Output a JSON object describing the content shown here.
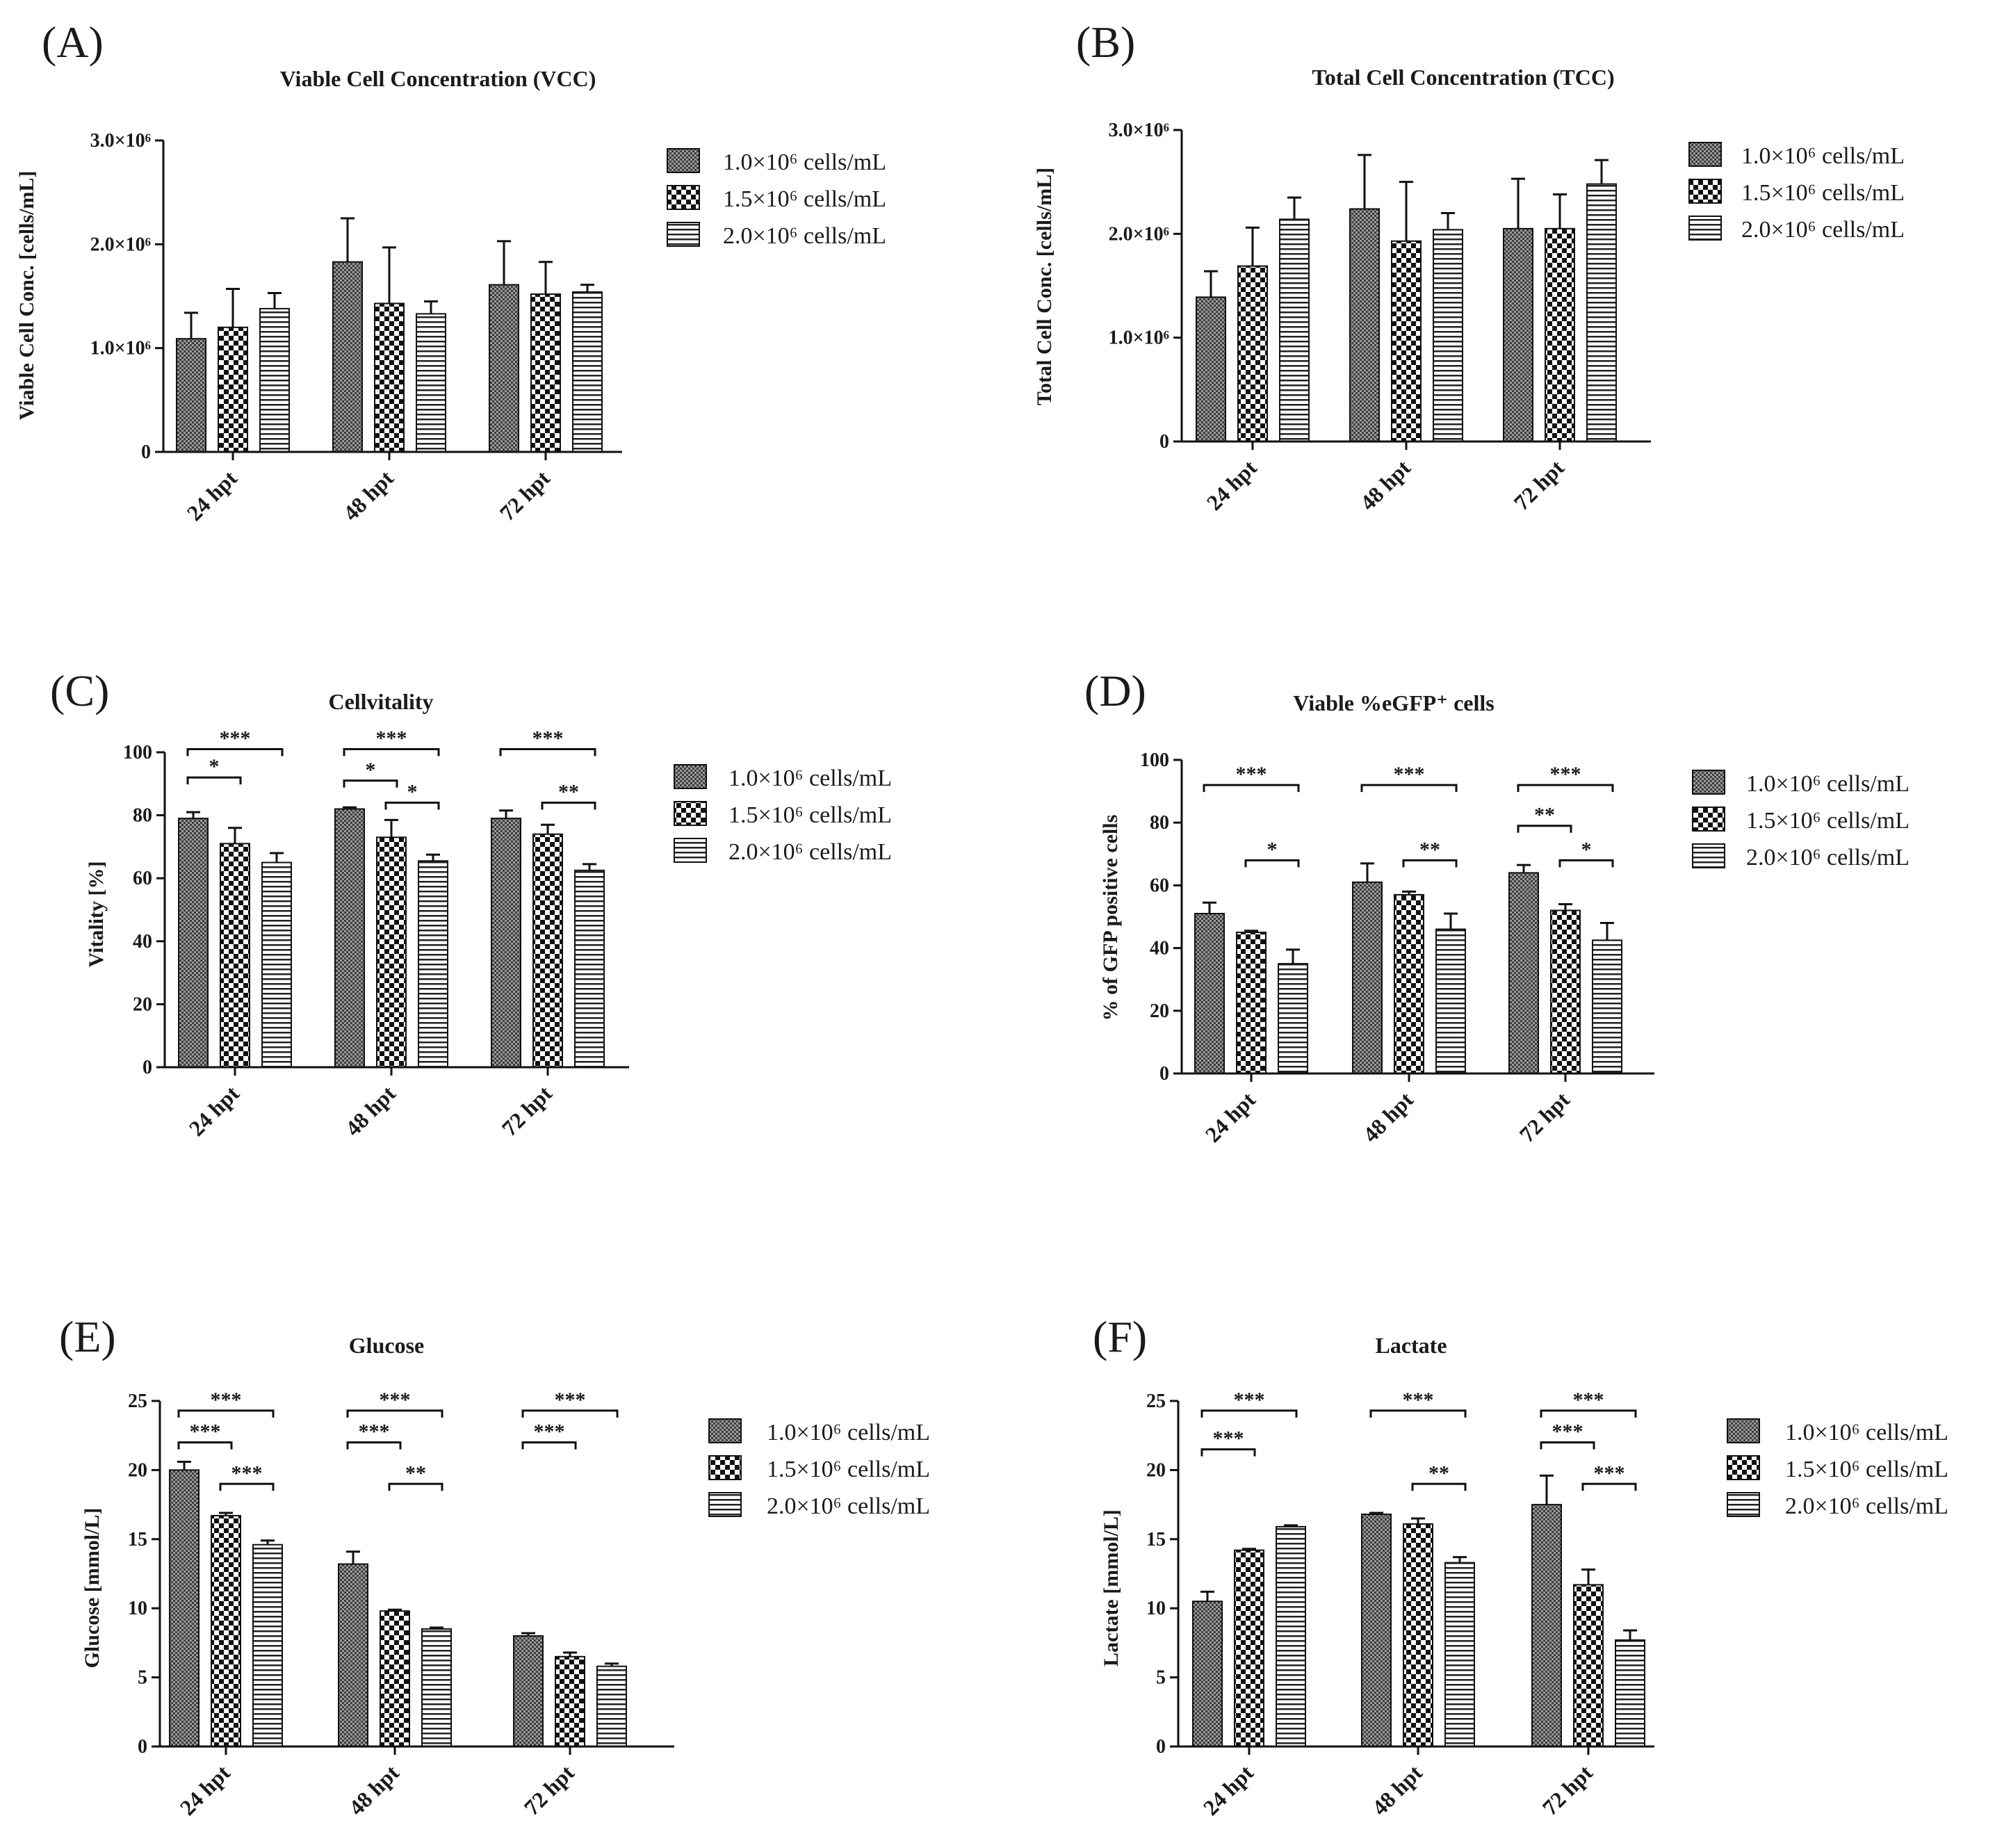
{
  "patterns": [
    "dense",
    "checker",
    "stripes"
  ],
  "panels": [
    {
      "label": "(A)",
      "title": "Viable Cell Concentration (VCC)",
      "ylabel": "Viable Cell Conc. [cells/mL]",
      "categories": [
        "24 hpt",
        "48 hpt",
        "72 hpt"
      ],
      "yticks": [
        0,
        1000000,
        2000000,
        3000000
      ],
      "ytick_labels": [
        "0",
        "1.0×10⁶",
        "2.0×10⁶",
        "3.0×10⁶"
      ],
      "ylim": [
        0,
        3000000
      ],
      "legend": [
        "1.0×10⁶ cells/mL",
        "1.5×10⁶ cells/mL",
        "2.0×10⁶ cells/mL"
      ],
      "series": [
        {
          "name": "1.0×10⁶ cells/mL",
          "values": [
            1090000,
            1830000,
            1610000
          ],
          "errors": [
            250000,
            420000,
            420000
          ]
        },
        {
          "name": "1.5×10⁶ cells/mL",
          "values": [
            1200000,
            1430000,
            1520000
          ],
          "errors": [
            370000,
            540000,
            310000
          ]
        },
        {
          "name": "2.0×10⁶ cells/mL",
          "values": [
            1380000,
            1330000,
            1540000
          ],
          "errors": [
            150000,
            120000,
            70000
          ]
        }
      ],
      "sig": []
    },
    {
      "label": "(B)",
      "title": "Total Cell Concentration (TCC)",
      "ylabel": "Total Cell Conc. [cells/mL]",
      "categories": [
        "24 hpt",
        "48 hpt",
        "72 hpt"
      ],
      "yticks": [
        0,
        1000000,
        2000000,
        3000000
      ],
      "ytick_labels": [
        "0",
        "1.0×10⁶",
        "2.0×10⁶",
        "3.0×10⁶"
      ],
      "ylim": [
        0,
        3000000
      ],
      "legend": [
        "1.0×10⁶ cells/mL",
        "1.5×10⁶ cells/mL",
        "2.0×10⁶ cells/mL"
      ],
      "series": [
        {
          "name": "1.0×10⁶ cells/mL",
          "values": [
            1390000,
            2240000,
            2050000
          ],
          "errors": [
            250000,
            520000,
            480000
          ]
        },
        {
          "name": "1.5×10⁶ cells/mL",
          "values": [
            1690000,
            1930000,
            2050000
          ],
          "errors": [
            370000,
            570000,
            330000
          ]
        },
        {
          "name": "2.0×10⁶ cells/mL",
          "values": [
            2140000,
            2040000,
            2480000
          ],
          "errors": [
            210000,
            160000,
            230000
          ]
        }
      ],
      "sig": []
    },
    {
      "label": "(C)",
      "title": "Cellvitality",
      "ylabel": "Vitality [%]",
      "categories": [
        "24 hpt",
        "48 hpt",
        "72 hpt"
      ],
      "yticks": [
        0,
        20,
        40,
        60,
        80,
        100
      ],
      "ytick_labels": [
        "0",
        "20",
        "40",
        "60",
        "80",
        "100"
      ],
      "ylim": [
        0,
        100
      ],
      "legend": [
        "1.0×10⁶ cells/mL",
        "1.5×10⁶ cells/mL",
        "2.0×10⁶ cells/mL"
      ],
      "series": [
        {
          "name": "1.0×10⁶ cells/mL",
          "values": [
            79,
            82,
            79
          ],
          "errors": [
            2,
            0.5,
            2.5
          ]
        },
        {
          "name": "1.5×10⁶ cells/mL",
          "values": [
            71,
            73,
            74
          ],
          "errors": [
            5,
            5.5,
            3
          ]
        },
        {
          "name": "2.0×10⁶ cells/mL",
          "values": [
            65,
            65.5,
            62.5
          ],
          "errors": [
            3,
            2,
            2
          ]
        }
      ],
      "sig": [
        {
          "group": 0,
          "from": 0,
          "to": 2,
          "label": "***",
          "level": 101
        },
        {
          "group": 0,
          "from": 0,
          "to": 1,
          "label": "*",
          "level": 92
        },
        {
          "group": 1,
          "from": 0,
          "to": 2,
          "label": "***",
          "level": 101
        },
        {
          "group": 1,
          "from": 0,
          "to": 1,
          "label": "*",
          "level": 91
        },
        {
          "group": 1,
          "from": 1,
          "to": 2,
          "label": "*",
          "level": 84
        },
        {
          "group": 2,
          "from": 0,
          "to": 2,
          "label": "***",
          "level": 101
        },
        {
          "group": 2,
          "from": 1,
          "to": 2,
          "label": "**",
          "level": 84
        }
      ]
    },
    {
      "label": "(D)",
      "title": "Viable %eGFP⁺ cells",
      "ylabel": "% of GFP positive cells",
      "categories": [
        "24 hpt",
        "48 hpt",
        "72 hpt"
      ],
      "yticks": [
        0,
        20,
        40,
        60,
        80,
        100
      ],
      "ytick_labels": [
        "0",
        "20",
        "40",
        "60",
        "80",
        "100"
      ],
      "ylim": [
        0,
        100
      ],
      "legend": [
        "1.0×10⁶ cells/mL",
        "1.5×10⁶ cells/mL",
        "2.0×10⁶ cells/mL"
      ],
      "series": [
        {
          "name": "1.0×10⁶ cells/mL",
          "values": [
            51,
            61,
            64
          ],
          "errors": [
            3.5,
            6,
            2.5
          ]
        },
        {
          "name": "1.5×10⁶ cells/mL",
          "values": [
            45,
            57,
            52
          ],
          "errors": [
            0.5,
            1,
            2
          ]
        },
        {
          "name": "2.0×10⁶ cells/mL",
          "values": [
            35,
            46,
            42.5
          ],
          "errors": [
            4.5,
            5,
            5.5
          ]
        }
      ],
      "sig": [
        {
          "group": 0,
          "from": 0,
          "to": 2,
          "label": "***",
          "level": 92
        },
        {
          "group": 0,
          "from": 1,
          "to": 2,
          "label": "*",
          "level": 68
        },
        {
          "group": 1,
          "from": 0,
          "to": 2,
          "label": "***",
          "level": 92
        },
        {
          "group": 1,
          "from": 1,
          "to": 2,
          "label": "**",
          "level": 68
        },
        {
          "group": 2,
          "from": 0,
          "to": 2,
          "label": "***",
          "level": 92
        },
        {
          "group": 2,
          "from": 0,
          "to": 1,
          "label": "**",
          "level": 79
        },
        {
          "group": 2,
          "from": 1,
          "to": 2,
          "label": "*",
          "level": 68
        }
      ]
    },
    {
      "label": "(E)",
      "title": "Glucose",
      "ylabel": "Glucose [mmol/L]",
      "categories": [
        "24 hpt",
        "48 hpt",
        "72 hpt"
      ],
      "yticks": [
        0,
        5,
        10,
        15,
        20,
        25
      ],
      "ytick_labels": [
        "0",
        "5",
        "10",
        "15",
        "20",
        "25"
      ],
      "ylim": [
        0,
        25
      ],
      "legend": [
        "1.0×10⁶ cells/mL",
        "1.5×10⁶ cells/mL",
        "2.0×10⁶ cells/mL"
      ],
      "series": [
        {
          "name": "1.0×10⁶ cells/mL",
          "values": [
            20,
            13.2,
            8
          ],
          "errors": [
            0.6,
            0.9,
            0.2
          ]
        },
        {
          "name": "1.5×10⁶ cells/mL",
          "values": [
            16.7,
            9.8,
            6.5
          ],
          "errors": [
            0.2,
            0.1,
            0.3
          ]
        },
        {
          "name": "2.0×10⁶ cells/mL",
          "values": [
            14.6,
            8.5,
            5.8
          ],
          "errors": [
            0.3,
            0.1,
            0.2
          ]
        }
      ],
      "sig": [
        {
          "group": 0,
          "from": 0,
          "to": 2,
          "label": "***",
          "level": 24.3
        },
        {
          "group": 0,
          "from": 0,
          "to": 1,
          "label": "***",
          "level": 22
        },
        {
          "group": 0,
          "from": 1,
          "to": 2,
          "label": "***",
          "level": 19
        },
        {
          "group": 1,
          "from": 0,
          "to": 2,
          "label": "***",
          "level": 24.3
        },
        {
          "group": 1,
          "from": 0,
          "to": 1,
          "label": "***",
          "level": 22
        },
        {
          "group": 1,
          "from": 1,
          "to": 2,
          "label": "**",
          "level": 19
        },
        {
          "group": 2,
          "from": 0,
          "to": 2,
          "label": "***",
          "level": 24.3
        },
        {
          "group": 2,
          "from": 0,
          "to": 1,
          "label": "***",
          "level": 22
        }
      ]
    },
    {
      "label": "(F)",
      "title": "Lactate",
      "ylabel": "Lactate [mmol/L]",
      "categories": [
        "24 hpt",
        "48 hpt",
        "72 hpt"
      ],
      "yticks": [
        0,
        5,
        10,
        15,
        20,
        25
      ],
      "ytick_labels": [
        "0",
        "5",
        "10",
        "15",
        "20",
        "25"
      ],
      "ylim": [
        0,
        25
      ],
      "legend": [
        "1.0×10⁶ cells/mL",
        "1.5×10⁶ cells/mL",
        "2.0×10⁶ cells/mL"
      ],
      "series": [
        {
          "name": "1.0×10⁶ cells/mL",
          "values": [
            10.5,
            16.8,
            17.5
          ],
          "errors": [
            0.7,
            0.1,
            2.1
          ]
        },
        {
          "name": "1.5×10⁶ cells/mL",
          "values": [
            14.2,
            16.1,
            11.7
          ],
          "errors": [
            0.1,
            0.4,
            1.1
          ]
        },
        {
          "name": "2.0×10⁶ cells/mL",
          "values": [
            15.9,
            13.3,
            7.7
          ],
          "errors": [
            0.1,
            0.4,
            0.7
          ]
        }
      ],
      "sig": [
        {
          "group": 0,
          "from": 0,
          "to": 2,
          "label": "***",
          "level": 24.3
        },
        {
          "group": 0,
          "from": 0,
          "to": 1,
          "label": "***",
          "level": 21.5
        },
        {
          "group": 1,
          "from": 0,
          "to": 2,
          "label": "***",
          "level": 24.3
        },
        {
          "group": 1,
          "from": 1,
          "to": 2,
          "label": "**",
          "level": 19
        },
        {
          "group": 2,
          "from": 0,
          "to": 2,
          "label": "***",
          "level": 24.3
        },
        {
          "group": 2,
          "from": 0,
          "to": 1,
          "label": "***",
          "level": 22
        },
        {
          "group": 2,
          "from": 1,
          "to": 2,
          "label": "***",
          "level": 19
        }
      ]
    }
  ],
  "chart_data": [
    {
      "type": "bar",
      "title": "Viable Cell Concentration (VCC)",
      "xlabel": "",
      "ylabel": "Viable Cell Conc. [cells/mL]",
      "categories": [
        "24 hpt",
        "48 hpt",
        "72 hpt"
      ],
      "ylim": [
        0,
        3000000
      ],
      "series": [
        {
          "name": "1.0×10⁶ cells/mL",
          "values": [
            1090000,
            1830000,
            1610000
          ]
        },
        {
          "name": "1.5×10⁶ cells/mL",
          "values": [
            1200000,
            1430000,
            1520000
          ]
        },
        {
          "name": "2.0×10⁶ cells/mL",
          "values": [
            1380000,
            1330000,
            1540000
          ]
        }
      ]
    },
    {
      "type": "bar",
      "title": "Total Cell Concentration (TCC)",
      "xlabel": "",
      "ylabel": "Total Cell Conc. [cells/mL]",
      "categories": [
        "24 hpt",
        "48 hpt",
        "72 hpt"
      ],
      "ylim": [
        0,
        3000000
      ],
      "series": [
        {
          "name": "1.0×10⁶ cells/mL",
          "values": [
            1390000,
            2240000,
            2050000
          ]
        },
        {
          "name": "1.5×10⁶ cells/mL",
          "values": [
            1690000,
            1930000,
            2050000
          ]
        },
        {
          "name": "2.0×10⁶ cells/mL",
          "values": [
            2140000,
            2040000,
            2480000
          ]
        }
      ]
    },
    {
      "type": "bar",
      "title": "Cellvitality",
      "xlabel": "",
      "ylabel": "Vitality [%]",
      "categories": [
        "24 hpt",
        "48 hpt",
        "72 hpt"
      ],
      "ylim": [
        0,
        100
      ],
      "series": [
        {
          "name": "1.0×10⁶ cells/mL",
          "values": [
            79,
            82,
            79
          ]
        },
        {
          "name": "1.5×10⁶ cells/mL",
          "values": [
            71,
            73,
            74
          ]
        },
        {
          "name": "2.0×10⁶ cells/mL",
          "values": [
            65,
            65.5,
            62.5
          ]
        }
      ]
    },
    {
      "type": "bar",
      "title": "Viable %eGFP⁺ cells",
      "xlabel": "",
      "ylabel": "% of GFP positive cells",
      "categories": [
        "24 hpt",
        "48 hpt",
        "72 hpt"
      ],
      "ylim": [
        0,
        100
      ],
      "series": [
        {
          "name": "1.0×10⁶ cells/mL",
          "values": [
            51,
            61,
            64
          ]
        },
        {
          "name": "1.5×10⁶ cells/mL",
          "values": [
            45,
            57,
            52
          ]
        },
        {
          "name": "2.0×10⁶ cells/mL",
          "values": [
            35,
            46,
            42.5
          ]
        }
      ]
    },
    {
      "type": "bar",
      "title": "Glucose",
      "xlabel": "",
      "ylabel": "Glucose [mmol/L]",
      "categories": [
        "24 hpt",
        "48 hpt",
        "72 hpt"
      ],
      "ylim": [
        0,
        25
      ],
      "series": [
        {
          "name": "1.0×10⁶ cells/mL",
          "values": [
            20,
            13.2,
            8
          ]
        },
        {
          "name": "1.5×10⁶ cells/mL",
          "values": [
            16.7,
            9.8,
            6.5
          ]
        },
        {
          "name": "2.0×10⁶ cells/mL",
          "values": [
            14.6,
            8.5,
            5.8
          ]
        }
      ]
    },
    {
      "type": "bar",
      "title": "Lactate",
      "xlabel": "",
      "ylabel": "Lactate [mmol/L]",
      "categories": [
        "24 hpt",
        "48 hpt",
        "72 hpt"
      ],
      "ylim": [
        0,
        25
      ],
      "series": [
        {
          "name": "1.0×10⁶ cells/mL",
          "values": [
            10.5,
            16.8,
            17.5
          ]
        },
        {
          "name": "1.5×10⁶ cells/mL",
          "values": [
            14.2,
            16.1,
            11.7
          ]
        },
        {
          "name": "2.0×10⁶ cells/mL",
          "values": [
            15.9,
            13.3,
            7.7
          ]
        }
      ]
    }
  ]
}
